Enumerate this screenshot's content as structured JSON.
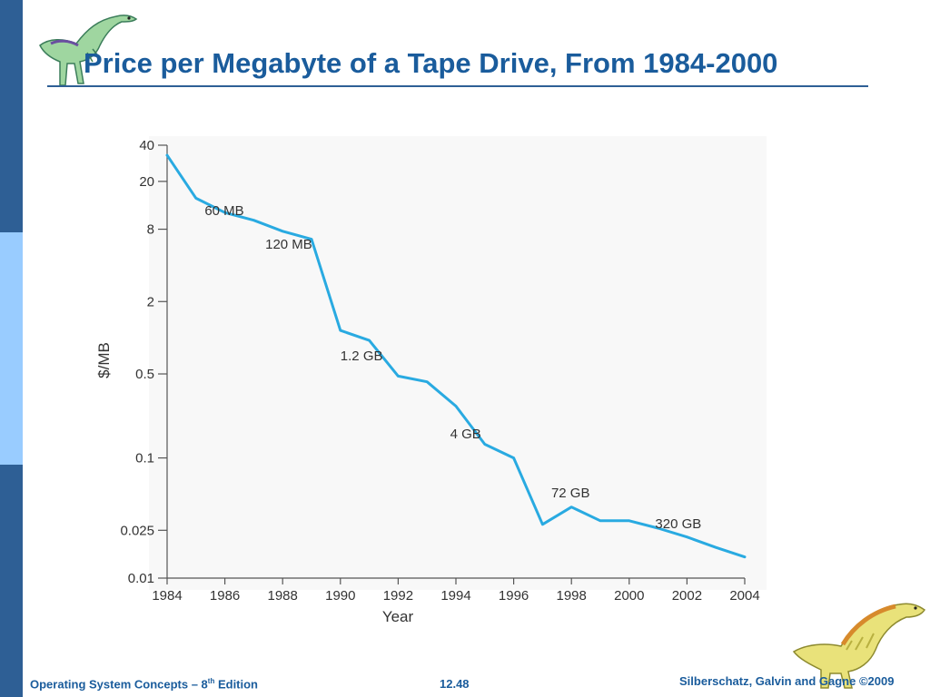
{
  "slide": {
    "title": "Price per Megabyte of a Tape Drive, From 1984-2000",
    "footer_left_prefix": "Operating System Concepts – 8",
    "footer_left_sup": "th",
    "footer_left_suffix": " Edition",
    "footer_center": "12.48",
    "footer_right": "Silberschatz, Galvin and Gagne ©2009",
    "colors": {
      "title": "#1a5c9c",
      "sidebar_dark": "#2e5f95",
      "sidebar_light": "#99ccff",
      "line": "#29aae1"
    },
    "icons": [
      "dinosaur-icon-top",
      "dinosaur-icon-bottom"
    ]
  },
  "chart_data": {
    "type": "line",
    "title": "",
    "xlabel": "Year",
    "ylabel": "$/MB",
    "y_scale": "log",
    "xlim": [
      1984,
      2004
    ],
    "ylim": [
      0.01,
      40
    ],
    "x_ticks": [
      "1984",
      "1986",
      "1988",
      "1990",
      "1992",
      "1994",
      "1996",
      "1998",
      "2000",
      "2002",
      "2004"
    ],
    "y_ticks": [
      {
        "value": 40,
        "label": "40"
      },
      {
        "value": 20,
        "label": "20"
      },
      {
        "value": 8,
        "label": "8"
      },
      {
        "value": 2,
        "label": "2"
      },
      {
        "value": 0.5,
        "label": "0.5"
      },
      {
        "value": 0.1,
        "label": "0.1"
      },
      {
        "value": 0.025,
        "label": "0.025"
      },
      {
        "value": 0.01,
        "label": "0.01"
      }
    ],
    "series": [
      {
        "x": [
          1984,
          1985,
          1986,
          1987,
          1988,
          1989,
          1990,
          1991,
          1992,
          1993,
          1994,
          1995,
          1996,
          1997,
          1998,
          1999,
          2000,
          2001,
          2002,
          2003,
          2004
        ],
        "y": [
          33,
          14.5,
          11,
          9.5,
          7.7,
          6.6,
          1.15,
          0.95,
          0.48,
          0.43,
          0.27,
          0.13,
          0.1,
          0.028,
          0.039,
          0.03,
          0.03,
          0.026,
          0.022,
          0.018,
          0.015
        ]
      }
    ],
    "annotations": [
      {
        "text": "60 MB",
        "x": 1985.3,
        "y": 10.5
      },
      {
        "text": "120 MB",
        "x": 1987.4,
        "y": 5.5
      },
      {
        "text": "1.2 GB",
        "x": 1990.0,
        "y": 0.65
      },
      {
        "text": "4 GB",
        "x": 1993.8,
        "y": 0.145
      },
      {
        "text": "72 GB",
        "x": 1997.3,
        "y": 0.047
      },
      {
        "text": "320 GB",
        "x": 2000.9,
        "y": 0.026
      }
    ]
  }
}
